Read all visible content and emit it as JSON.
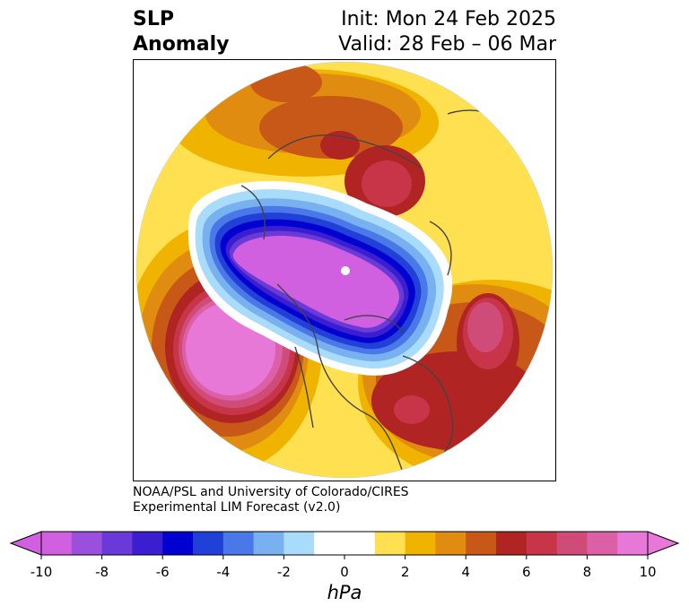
{
  "title": {
    "left_line1": "SLP",
    "left_line2": "Anomaly",
    "right_line1": "Init: Mon 24 Feb 2025",
    "right_line2": "Valid: 28 Feb – 06 Mar"
  },
  "credit": {
    "line1": "NOAA/PSL and University of Colorado/CIRES",
    "line2": "Experimental LIM Forecast (v2.0)"
  },
  "colorbar": {
    "unit_label": "hPa",
    "tick_labels": [
      "-10",
      "-8",
      "-6",
      "-4",
      "-2",
      "0",
      "2",
      "4",
      "6",
      "8",
      "10"
    ],
    "colors": [
      "#d060e0",
      "#9a50dc",
      "#6a3ad8",
      "#3a1ed0",
      "#0000d0",
      "#2040d8",
      "#4a78e8",
      "#78b0f0",
      "#a8dcfa",
      "#ffffff",
      "#ffffff",
      "#ffe050",
      "#f0b400",
      "#e08c10",
      "#c85818",
      "#b02424",
      "#c83448",
      "#d04c78",
      "#dc60a8",
      "#e878d8"
    ],
    "extend_min_color": "#d060e0",
    "extend_max_color": "#e878d8"
  },
  "map_data": {
    "projection": "north polar stereographic",
    "anomalies": [
      {
        "region": "Arctic / Canada",
        "sign": "negative",
        "peak_hPa": -10
      },
      {
        "region": "North Pacific",
        "sign": "positive",
        "peak_hPa": 10
      },
      {
        "region": "Western North Atlantic",
        "sign": "positive",
        "peak_hPa": 8
      },
      {
        "region": "Eastern Atlantic / Europe",
        "sign": "positive",
        "peak_hPa": 8
      },
      {
        "region": "Siberia",
        "sign": "positive",
        "peak_hPa": 8
      }
    ],
    "colors": {
      "strong_negative": "#d060e0",
      "moderate_negative": "#0000d0",
      "weak_negative": "#a8dcfa",
      "weak_positive": "#ffe050",
      "moderate_positive": "#e08c10",
      "strong_positive": "#b02424",
      "extreme_positive": "#e878d8",
      "coastline": "#444444"
    }
  }
}
